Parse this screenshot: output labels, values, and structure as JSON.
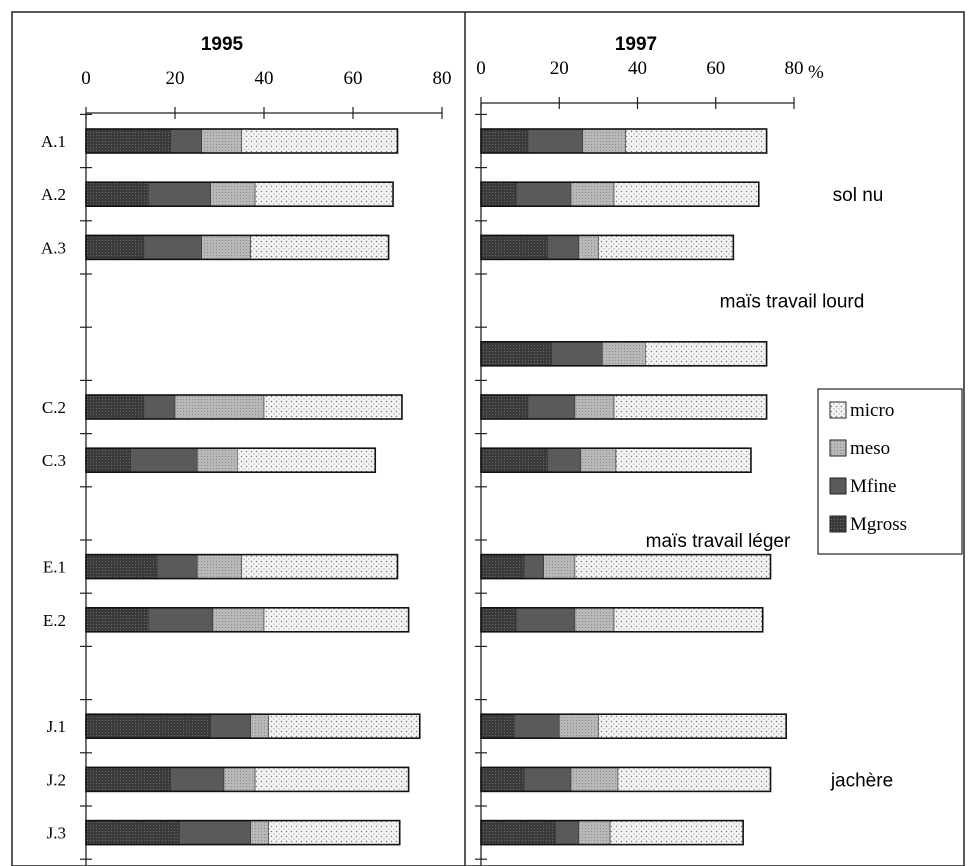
{
  "chart_data": {
    "type": "bar",
    "stacked": true,
    "orientation": "horizontal",
    "unit": "%",
    "xlim": [
      0,
      80
    ],
    "ticks": [
      "0",
      "20",
      "40",
      "60",
      "80"
    ],
    "unit_label": "%",
    "colors": {
      "Mgross": "#3c3c3c",
      "Mfine": "#5a5a5a",
      "meso": "#b4b4b4",
      "micro": "#f2f2f2"
    },
    "legend": [
      {
        "key": "micro",
        "label": "micro"
      },
      {
        "key": "meso",
        "label": "meso"
      },
      {
        "key": "Mfine",
        "label": "Mfine"
      },
      {
        "key": "Mgross",
        "label": "Mgross"
      }
    ],
    "panels": [
      {
        "title": "1995",
        "bars": [
          {
            "label": "A.1",
            "slot": 0,
            "Mgross": 19,
            "Mfine": 7,
            "meso": 9,
            "micro": 35
          },
          {
            "label": "A.2",
            "slot": 1,
            "Mgross": 14,
            "Mfine": 14,
            "meso": 10,
            "micro": 31
          },
          {
            "label": "A.3",
            "slot": 2,
            "Mgross": 13,
            "Mfine": 13,
            "meso": 11,
            "micro": 31
          },
          {
            "label": "C.2",
            "slot": 5,
            "Mgross": 13,
            "Mfine": 7,
            "meso": 20,
            "micro": 31
          },
          {
            "label": "C.3",
            "slot": 6,
            "Mgross": 10,
            "Mfine": 15,
            "meso": 9,
            "micro": 31
          },
          {
            "label": "E.1",
            "slot": 8,
            "Mgross": 16,
            "Mfine": 9,
            "meso": 10,
            "micro": 35
          },
          {
            "label": "E.2",
            "slot": 9,
            "Mgross": 14,
            "Mfine": 14.5,
            "meso": 11.5,
            "micro": 32.5
          },
          {
            "label": "J.1",
            "slot": 11,
            "Mgross": 28,
            "Mfine": 9,
            "meso": 4,
            "micro": 34
          },
          {
            "label": "J.2",
            "slot": 12,
            "Mgross": 19,
            "Mfine": 12,
            "meso": 7,
            "micro": 34.5
          },
          {
            "label": "J.3",
            "slot": 13,
            "Mgross": 21,
            "Mfine": 16,
            "meso": 4,
            "micro": 29.5
          }
        ]
      },
      {
        "title": "1997",
        "bars": [
          {
            "label": "",
            "slot": 0,
            "Mgross": 12,
            "Mfine": 14,
            "meso": 11,
            "micro": 36
          },
          {
            "label": "",
            "slot": 1,
            "Mgross": 9,
            "Mfine": 14,
            "meso": 11,
            "micro": 37
          },
          {
            "label": "",
            "slot": 2,
            "Mgross": 17,
            "Mfine": 8,
            "meso": 5,
            "micro": 34.5
          },
          {
            "label": "",
            "slot": 4,
            "Mgross": 18,
            "Mfine": 13,
            "meso": 11,
            "micro": 31
          },
          {
            "label": "",
            "slot": 5,
            "Mgross": 12,
            "Mfine": 12,
            "meso": 10,
            "micro": 39
          },
          {
            "label": "",
            "slot": 6,
            "Mgross": 17,
            "Mfine": 8.5,
            "meso": 9,
            "micro": 34.5
          },
          {
            "label": "",
            "slot": 8,
            "Mgross": 11,
            "Mfine": 5,
            "meso": 8,
            "micro": 50
          },
          {
            "label": "",
            "slot": 9,
            "Mgross": 9,
            "Mfine": 15,
            "meso": 10,
            "micro": 38
          },
          {
            "label": "",
            "slot": 11,
            "Mgross": 8.5,
            "Mfine": 11.5,
            "meso": 10,
            "micro": 48
          },
          {
            "label": "",
            "slot": 12,
            "Mgross": 11,
            "Mfine": 12,
            "meso": 12,
            "micro": 39
          },
          {
            "label": "",
            "slot": 13,
            "Mgross": 19,
            "Mfine": 6,
            "meso": 8,
            "micro": 34
          }
        ]
      }
    ],
    "annotations": [
      {
        "text": "sol nu",
        "slot": 1
      },
      {
        "text": "maïs travail lourd",
        "slot": 3
      },
      {
        "text": "maïs travail léger",
        "slot": 7.5
      },
      {
        "text": "jachère",
        "slot": 12
      }
    ]
  }
}
